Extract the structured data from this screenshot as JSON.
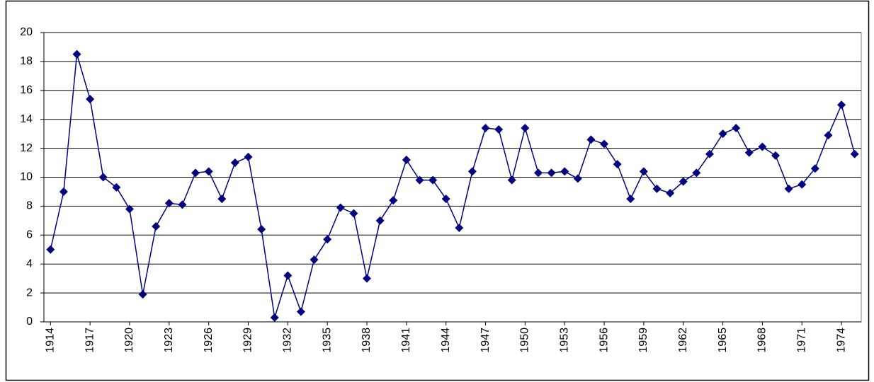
{
  "chart_data": {
    "type": "line",
    "color": "#000080",
    "grid": true,
    "x": [
      1914,
      1915,
      1916,
      1917,
      1918,
      1919,
      1920,
      1921,
      1922,
      1923,
      1924,
      1925,
      1926,
      1927,
      1928,
      1929,
      1930,
      1931,
      1932,
      1933,
      1934,
      1935,
      1936,
      1937,
      1938,
      1939,
      1940,
      1941,
      1942,
      1943,
      1944,
      1945,
      1946,
      1947,
      1948,
      1949,
      1950,
      1951,
      1952,
      1953,
      1954,
      1955,
      1956,
      1957,
      1958,
      1959,
      1960,
      1961,
      1962,
      1963,
      1964,
      1965,
      1966,
      1967,
      1968,
      1969,
      1970,
      1971,
      1972,
      1973,
      1974,
      1975
    ],
    "values": [
      5.0,
      9.0,
      18.5,
      15.4,
      10.0,
      9.3,
      7.8,
      1.9,
      6.6,
      8.2,
      8.1,
      10.3,
      10.4,
      8.5,
      11.0,
      11.4,
      6.4,
      0.3,
      3.2,
      0.7,
      4.3,
      5.7,
      7.9,
      7.5,
      3.0,
      7.0,
      8.4,
      11.2,
      9.8,
      9.8,
      8.5,
      6.5,
      10.4,
      13.4,
      13.3,
      9.8,
      13.4,
      10.3,
      10.3,
      10.4,
      9.9,
      12.6,
      12.3,
      10.9,
      8.5,
      10.4,
      9.2,
      8.9,
      9.7,
      10.3,
      11.6,
      13.0,
      13.4,
      11.7,
      12.1,
      11.5,
      9.2,
      9.5,
      10.6,
      12.9,
      15.0,
      11.6
    ],
    "xlim": [
      1913.5,
      1975.5
    ],
    "xticks": [
      1914,
      1917,
      1920,
      1923,
      1926,
      1929,
      1932,
      1935,
      1938,
      1941,
      1944,
      1947,
      1950,
      1953,
      1956,
      1959,
      1962,
      1965,
      1968,
      1971,
      1974
    ],
    "ylim": [
      0,
      20
    ],
    "yticks": [
      0,
      2,
      4,
      6,
      8,
      10,
      12,
      14,
      16,
      18,
      20
    ]
  }
}
